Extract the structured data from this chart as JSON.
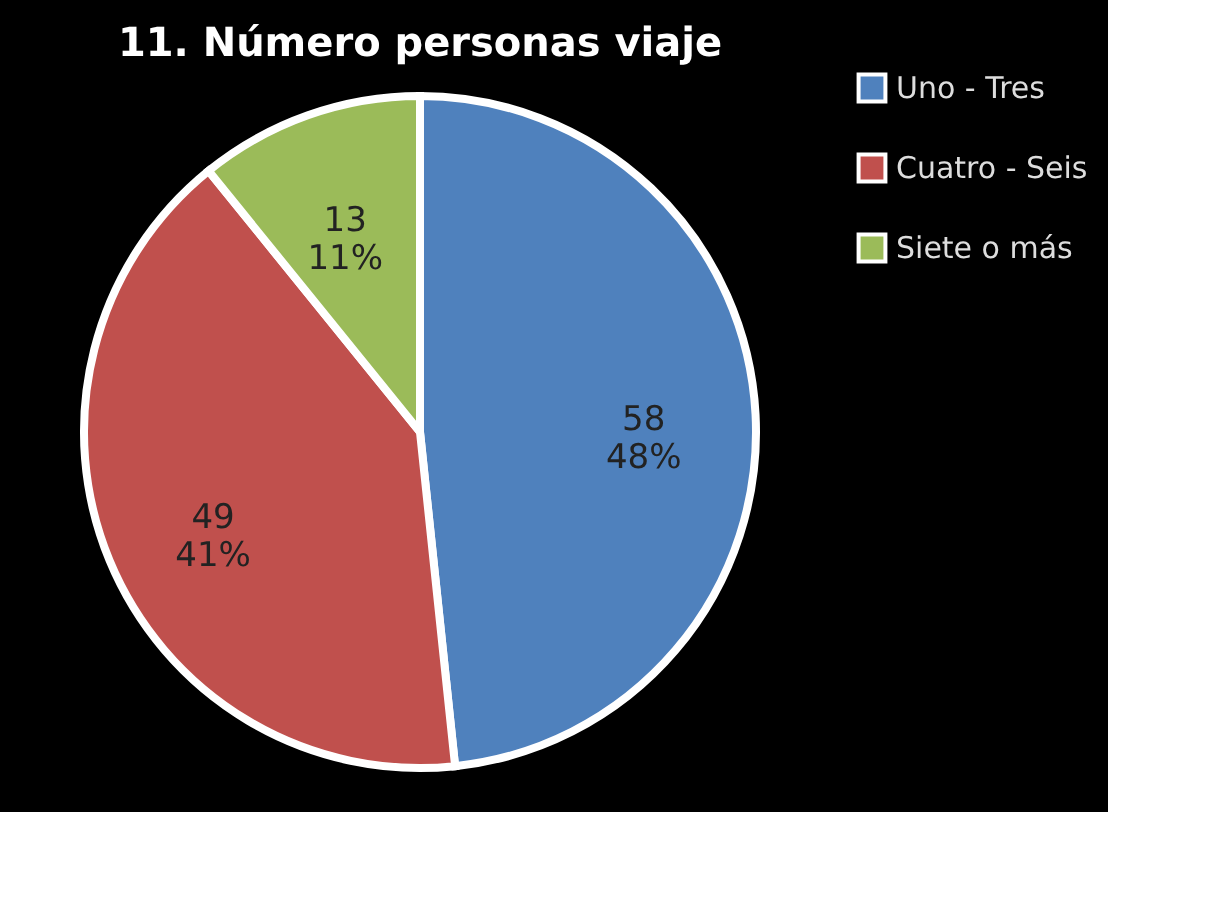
{
  "chart_data": {
    "type": "pie",
    "title": "11. Número personas viaje",
    "categories": [
      "Uno - Tres",
      "Cuatro - Seis",
      "Siete o más"
    ],
    "values": [
      58,
      49,
      13
    ],
    "colors": [
      "#4f81bd",
      "#c0504d",
      "#9bbb59"
    ],
    "value_labels": [
      "58\n48%",
      "49\n41%",
      "13\n11%"
    ],
    "legend": "right"
  }
}
